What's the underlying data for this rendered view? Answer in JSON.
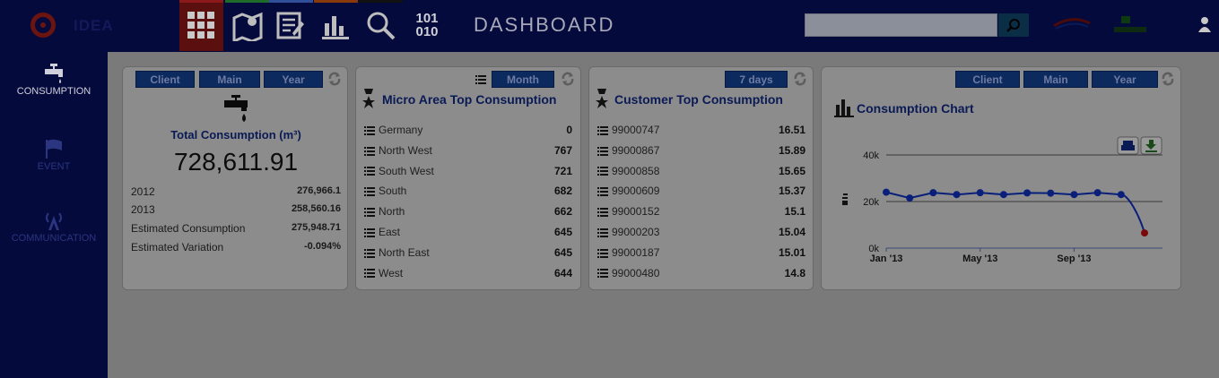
{
  "header": {
    "logo_text": "IDEA",
    "nav": [
      {
        "icon": "grid-icon"
      },
      {
        "icon": "map-icon"
      },
      {
        "icon": "list-edit-icon"
      },
      {
        "icon": "bar-chart-icon"
      },
      {
        "icon": "search-icon"
      }
    ],
    "binary_line1": "101",
    "binary_line2": "010",
    "title": "DASHBOARD",
    "search_placeholder": ""
  },
  "sidebar": {
    "items": [
      {
        "label": "CONSUMPTION",
        "icon": "faucet-icon",
        "active": true
      },
      {
        "label": "EVENT",
        "icon": "flag-icon",
        "active": false
      },
      {
        "label": "COMMUNICATION",
        "icon": "antenna-icon",
        "active": false
      }
    ]
  },
  "total_panel": {
    "buttons": [
      "Client",
      "Main",
      "Year"
    ],
    "title": "Total Consumption (m³)",
    "total": "728,611.91",
    "stats": [
      {
        "label": "2012",
        "value": "276,966.1"
      },
      {
        "label": "2013",
        "value": "258,560.16"
      },
      {
        "label": "Estimated Consumption",
        "value": "275,948.71"
      },
      {
        "label": "Estimated Variation",
        "value": "-0.094%"
      }
    ]
  },
  "micro_panel": {
    "button": "Month",
    "title": "Micro Area Top Consumption",
    "rows": [
      {
        "label": "Germany",
        "value": "0"
      },
      {
        "label": "North West",
        "value": "767"
      },
      {
        "label": "South West",
        "value": "721"
      },
      {
        "label": "South",
        "value": "682"
      },
      {
        "label": "North",
        "value": "662"
      },
      {
        "label": "East",
        "value": "645"
      },
      {
        "label": "North East",
        "value": "645"
      },
      {
        "label": "West",
        "value": "644"
      }
    ]
  },
  "customer_panel": {
    "button": "7 days",
    "title": "Customer Top Consumption",
    "rows": [
      {
        "label": "99000747",
        "value": "16.51"
      },
      {
        "label": "99000867",
        "value": "15.89"
      },
      {
        "label": "99000858",
        "value": "15.65"
      },
      {
        "label": "99000609",
        "value": "15.37"
      },
      {
        "label": "99000152",
        "value": "15.1"
      },
      {
        "label": "99000203",
        "value": "15.04"
      },
      {
        "label": "99000187",
        "value": "15.01"
      },
      {
        "label": "99000480",
        "value": "14.8"
      }
    ]
  },
  "chart_panel": {
    "buttons": [
      "Client",
      "Main",
      "Year"
    ],
    "title": "Consumption Chart"
  },
  "chart_data": {
    "type": "line",
    "x": [
      "2013-01",
      "2013-02",
      "2013-03",
      "2013-04",
      "2013-05",
      "2013-06",
      "2013-07",
      "2013-08",
      "2013-09",
      "2013-10",
      "2013-11",
      "2013-12"
    ],
    "xticks": [
      "Jan '13",
      "May '13",
      "Sep '13"
    ],
    "values": [
      24000,
      21500,
      23800,
      23000,
      23800,
      23000,
      23700,
      23600,
      23000,
      23800,
      23000,
      6500
    ],
    "yticks": [
      "0k",
      "20k",
      "40k"
    ],
    "ylim": [
      0,
      40000
    ],
    "grid": true,
    "line_color": "#0a1f7a",
    "last_point_color": "#7a0a0a"
  }
}
